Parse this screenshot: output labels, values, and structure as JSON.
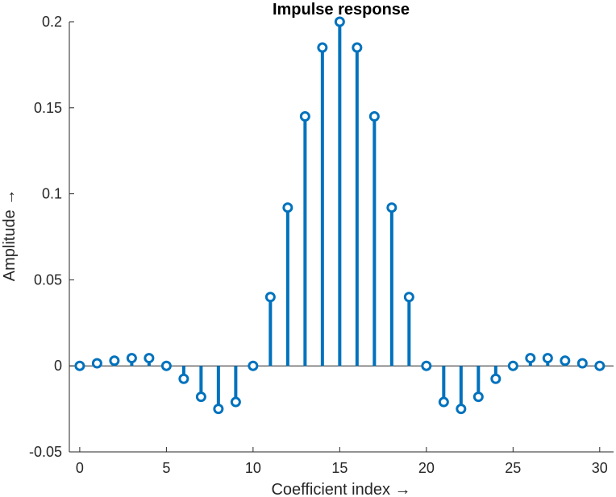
{
  "chart_data": {
    "type": "stem",
    "title": "Impulse response",
    "xlabel": "Coefficient index →",
    "ylabel": "Amplitude →",
    "xlim": [
      -0.6,
      30.8
    ],
    "ylim": [
      -0.05,
      0.2
    ],
    "x_ticks": [
      0,
      5,
      10,
      15,
      20,
      25,
      30
    ],
    "x_tick_labels": [
      "0",
      "5",
      "10",
      "15",
      "20",
      "25",
      "30"
    ],
    "y_ticks": [
      -0.05,
      0,
      0.05,
      0.1,
      0.15,
      0.2
    ],
    "y_tick_labels": [
      "-0.05",
      "0",
      "0.05",
      "0.1",
      "0.15",
      "0.2"
    ],
    "grid": false,
    "color": "#0072BD",
    "x": [
      0,
      1,
      2,
      3,
      4,
      5,
      6,
      7,
      8,
      9,
      10,
      11,
      12,
      13,
      14,
      15,
      16,
      17,
      18,
      19,
      20,
      21,
      22,
      23,
      24,
      25,
      26,
      27,
      28,
      29,
      30
    ],
    "y": [
      0.0,
      0.0015,
      0.003,
      0.0045,
      0.0045,
      0.0,
      -0.0075,
      -0.018,
      -0.025,
      -0.021,
      0.0,
      0.04,
      0.092,
      0.145,
      0.185,
      0.2,
      0.185,
      0.145,
      0.092,
      0.04,
      0.0,
      -0.021,
      -0.025,
      -0.018,
      -0.0075,
      0.0,
      0.0045,
      0.0045,
      0.003,
      0.0015,
      0.0
    ]
  }
}
